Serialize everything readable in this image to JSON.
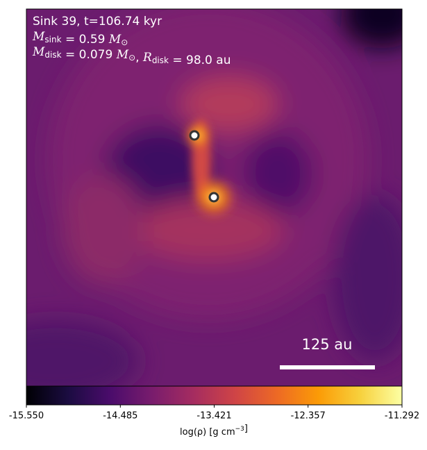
{
  "chart_data": {
    "type": "image",
    "info": [
      {
        "parts": [
          {
            "text": "Sink 39, t=106.74 kyr"
          }
        ]
      },
      {
        "parts": [
          {
            "text": "M",
            "sub": "sink"
          },
          {
            "text": " = 0.59 "
          },
          {
            "text": "M",
            "sub": "⊙"
          }
        ]
      },
      {
        "parts": [
          {
            "text": "M",
            "sub": "disk"
          },
          {
            "text": " = 0.079 "
          },
          {
            "text": "M",
            "sub": "⊙"
          },
          {
            "text": ", "
          },
          {
            "text": "R",
            "sub": "disk"
          },
          {
            "text": " = 98.0 au"
          }
        ]
      }
    ],
    "scalebar_label": "125 au",
    "colorbar": {
      "lim": [
        -15.55,
        -11.292
      ],
      "ticks": [
        {
          "value": -15.55,
          "label": "-15.550"
        },
        -14.485,
        -13.421,
        -12.357,
        -11.292
      ],
      "label": [
        {
          "text": "log(ρ) [g cm"
        },
        {
          "text": "−3",
          "sup": true
        },
        {
          "text": "]"
        }
      ],
      "colormap": [
        "#000004",
        "#1b0c41",
        "#4a0c6b",
        "#781c6d",
        "#a52c60",
        "#cf4446",
        "#ed6925",
        "#fb9b06",
        "#f7d13d",
        "#fcffa4"
      ]
    }
  }
}
